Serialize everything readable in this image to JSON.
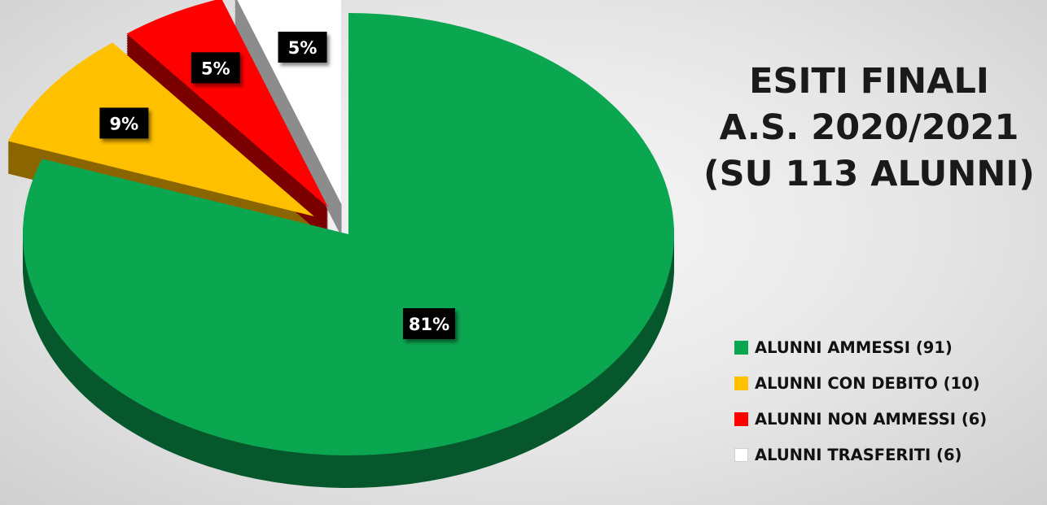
{
  "chart_data": {
    "type": "pie",
    "title_lines": [
      "ESITI FINALI",
      "A.S. 2020/2021",
      "(SU 113 ALUNNI)"
    ],
    "slices": [
      {
        "label": "ALUNNI AMMESSI (91)",
        "value": 91,
        "percent_label": "81%",
        "color": "#0aa650",
        "side_color": "#06582c",
        "exploded": false
      },
      {
        "label": "ALUNNI CON DEBITO (10)",
        "value": 10,
        "percent_label": "9%",
        "color": "#ffc000",
        "side_color": "#8a6500",
        "exploded": true
      },
      {
        "label": "ALUNNI NON AMMESSI (6)",
        "value": 6,
        "percent_label": "5%",
        "color": "#ff0000",
        "side_color": "#7a0000",
        "exploded": true
      },
      {
        "label": "ALUNNI TRASFERITI (6)",
        "value": 6,
        "percent_label": "5%",
        "color": "#ffffff",
        "side_color": "#8c8c8c",
        "exploded": true
      }
    ],
    "legend_position": "right",
    "style": "3d-exploded"
  }
}
